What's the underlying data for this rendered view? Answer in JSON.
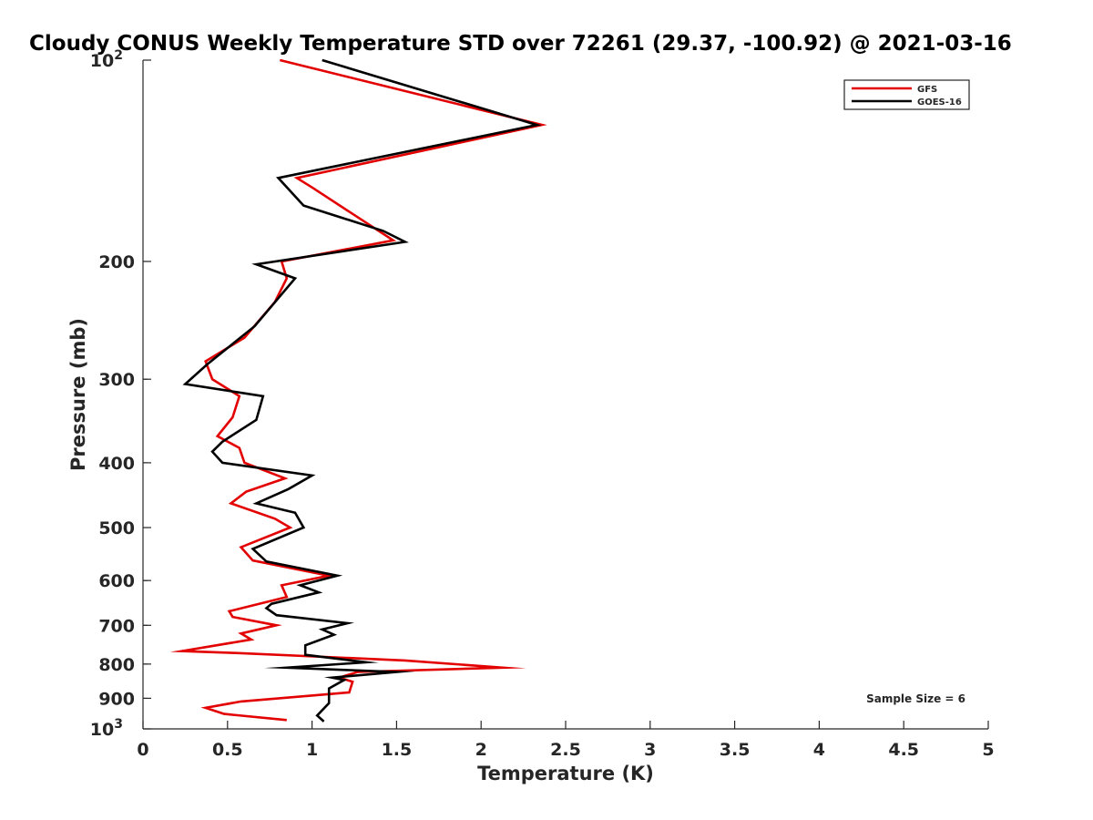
{
  "chart_data": {
    "type": "line",
    "title": "Cloudy CONUS Weekly Temperature STD over 72261 (29.37, -100.92) @ 2021-03-16",
    "xlabel": "Temperature (K)",
    "ylabel": "Pressure (mb)",
    "xlim": [
      0,
      5
    ],
    "ylim": [
      100,
      1000
    ],
    "y_scale": "log",
    "y_reversed": true,
    "x_ticks": [
      "0",
      "0.5",
      "1",
      "1.5",
      "2",
      "2.5",
      "3",
      "3.5",
      "4",
      "4.5",
      "5"
    ],
    "y_ticks": [
      {
        "value": 100,
        "base": "10",
        "exp": "2"
      },
      {
        "value": 200,
        "label": "200"
      },
      {
        "value": 300,
        "label": "300"
      },
      {
        "value": 400,
        "label": "400"
      },
      {
        "value": 500,
        "label": "500"
      },
      {
        "value": 600,
        "label": "600"
      },
      {
        "value": 700,
        "label": "700"
      },
      {
        "value": 800,
        "label": "800"
      },
      {
        "value": 900,
        "label": "900"
      },
      {
        "value": 1000,
        "base": "10",
        "exp": "3"
      }
    ],
    "grid": false,
    "legend_position": "top-right",
    "annotation": "Sample Size = 6",
    "series": [
      {
        "name": "GFS",
        "color": "#e30000",
        "points": [
          [
            0.81,
            100
          ],
          [
            2.36,
            125
          ],
          [
            0.91,
            150
          ],
          [
            1.0,
            155
          ],
          [
            1.48,
            186
          ],
          [
            0.82,
            200
          ],
          [
            0.85,
            212
          ],
          [
            0.78,
            230
          ],
          [
            0.6,
            260
          ],
          [
            0.37,
            282
          ],
          [
            0.41,
            300
          ],
          [
            0.57,
            318
          ],
          [
            0.53,
            342
          ],
          [
            0.44,
            365
          ],
          [
            0.57,
            380
          ],
          [
            0.6,
            400
          ],
          [
            0.84,
            422
          ],
          [
            0.61,
            442
          ],
          [
            0.52,
            460
          ],
          [
            0.78,
            485
          ],
          [
            0.87,
            500
          ],
          [
            0.58,
            535
          ],
          [
            0.65,
            560
          ],
          [
            1.1,
            590
          ],
          [
            0.82,
            610
          ],
          [
            0.85,
            635
          ],
          [
            0.51,
            667
          ],
          [
            0.53,
            680
          ],
          [
            0.79,
            700
          ],
          [
            0.58,
            720
          ],
          [
            0.64,
            735
          ],
          [
            0.23,
            765
          ],
          [
            0.55,
            770
          ],
          [
            1.55,
            790
          ],
          [
            2.13,
            810
          ],
          [
            1.27,
            822
          ],
          [
            1.16,
            838
          ],
          [
            1.24,
            850
          ],
          [
            1.22,
            882
          ],
          [
            0.58,
            910
          ],
          [
            0.37,
            930
          ],
          [
            0.48,
            950
          ],
          [
            0.85,
            970
          ]
        ]
      },
      {
        "name": "GOES-16",
        "color": "#000000",
        "points": [
          [
            1.06,
            100
          ],
          [
            2.33,
            125
          ],
          [
            0.8,
            150
          ],
          [
            0.95,
            165
          ],
          [
            1.42,
            180
          ],
          [
            1.55,
            187
          ],
          [
            0.67,
            202
          ],
          [
            0.9,
            212
          ],
          [
            0.66,
            250
          ],
          [
            0.38,
            285
          ],
          [
            0.25,
            305
          ],
          [
            0.71,
            318
          ],
          [
            0.67,
            345
          ],
          [
            0.47,
            372
          ],
          [
            0.41,
            385
          ],
          [
            0.47,
            400
          ],
          [
            1.0,
            418
          ],
          [
            0.86,
            438
          ],
          [
            0.67,
            460
          ],
          [
            0.9,
            475
          ],
          [
            0.95,
            500
          ],
          [
            0.65,
            538
          ],
          [
            0.73,
            562
          ],
          [
            1.15,
            590
          ],
          [
            0.93,
            610
          ],
          [
            1.04,
            625
          ],
          [
            0.76,
            650
          ],
          [
            0.73,
            660
          ],
          [
            0.79,
            676
          ],
          [
            1.21,
            695
          ],
          [
            1.06,
            710
          ],
          [
            1.13,
            723
          ],
          [
            0.96,
            750
          ],
          [
            0.96,
            775
          ],
          [
            1.32,
            795
          ],
          [
            0.85,
            810
          ],
          [
            1.5,
            822
          ],
          [
            1.12,
            838
          ],
          [
            1.19,
            845
          ],
          [
            1.1,
            870
          ],
          [
            1.1,
            915
          ],
          [
            1.03,
            955
          ],
          [
            1.07,
            975
          ]
        ]
      }
    ]
  }
}
